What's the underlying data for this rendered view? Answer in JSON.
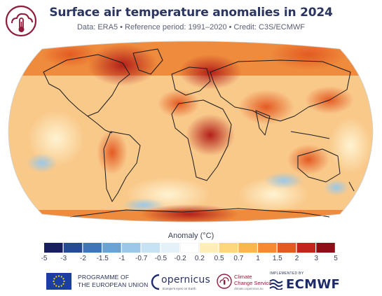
{
  "header": {
    "title": "Surface air temperature anomalies in 2024",
    "subtitle": "Data: ERA5 • Reference period: 1991–2020 • Credit: C3S/ECMWF"
  },
  "logo": {
    "name": "thermometer-cloud-icon",
    "color": "#8e1b3a"
  },
  "map": {
    "projection": "robinson",
    "ocean_base_color": "#f7d8a8",
    "land_outline_color": "#1b1b1b"
  },
  "legend": {
    "title": "Anomaly (°C)",
    "ticks": [
      "-5",
      "-3",
      "-2",
      "-1.5",
      "-1",
      "-0.7",
      "-0.5",
      "-0.2",
      "0.2",
      "0.5",
      "0.7",
      "1",
      "1.5",
      "2",
      "3",
      "5"
    ],
    "colors": [
      "#171f5e",
      "#254a96",
      "#3f76bb",
      "#6aa3d5",
      "#9bc8e8",
      "#c6e2f3",
      "#e4f1f9",
      "#ffffff",
      "#ffeeb8",
      "#fdd67d",
      "#fbb64e",
      "#f58a33",
      "#e35a23",
      "#c2261b",
      "#8e0f18"
    ]
  },
  "footer": {
    "eu_line1": "PROGRAMME OF",
    "eu_line2": "THE EUROPEAN UNION",
    "copernicus_word": "opernicus",
    "copernicus_tagline": "Europe's eyes on Earth",
    "c3s_line1": "Climate",
    "c3s_line2": "Change Service",
    "c3s_tagline": "climate.copernicus.eu",
    "ecmwf_implemented": "IMPLEMENTED BY",
    "ecmwf_word": "ECMWF"
  }
}
